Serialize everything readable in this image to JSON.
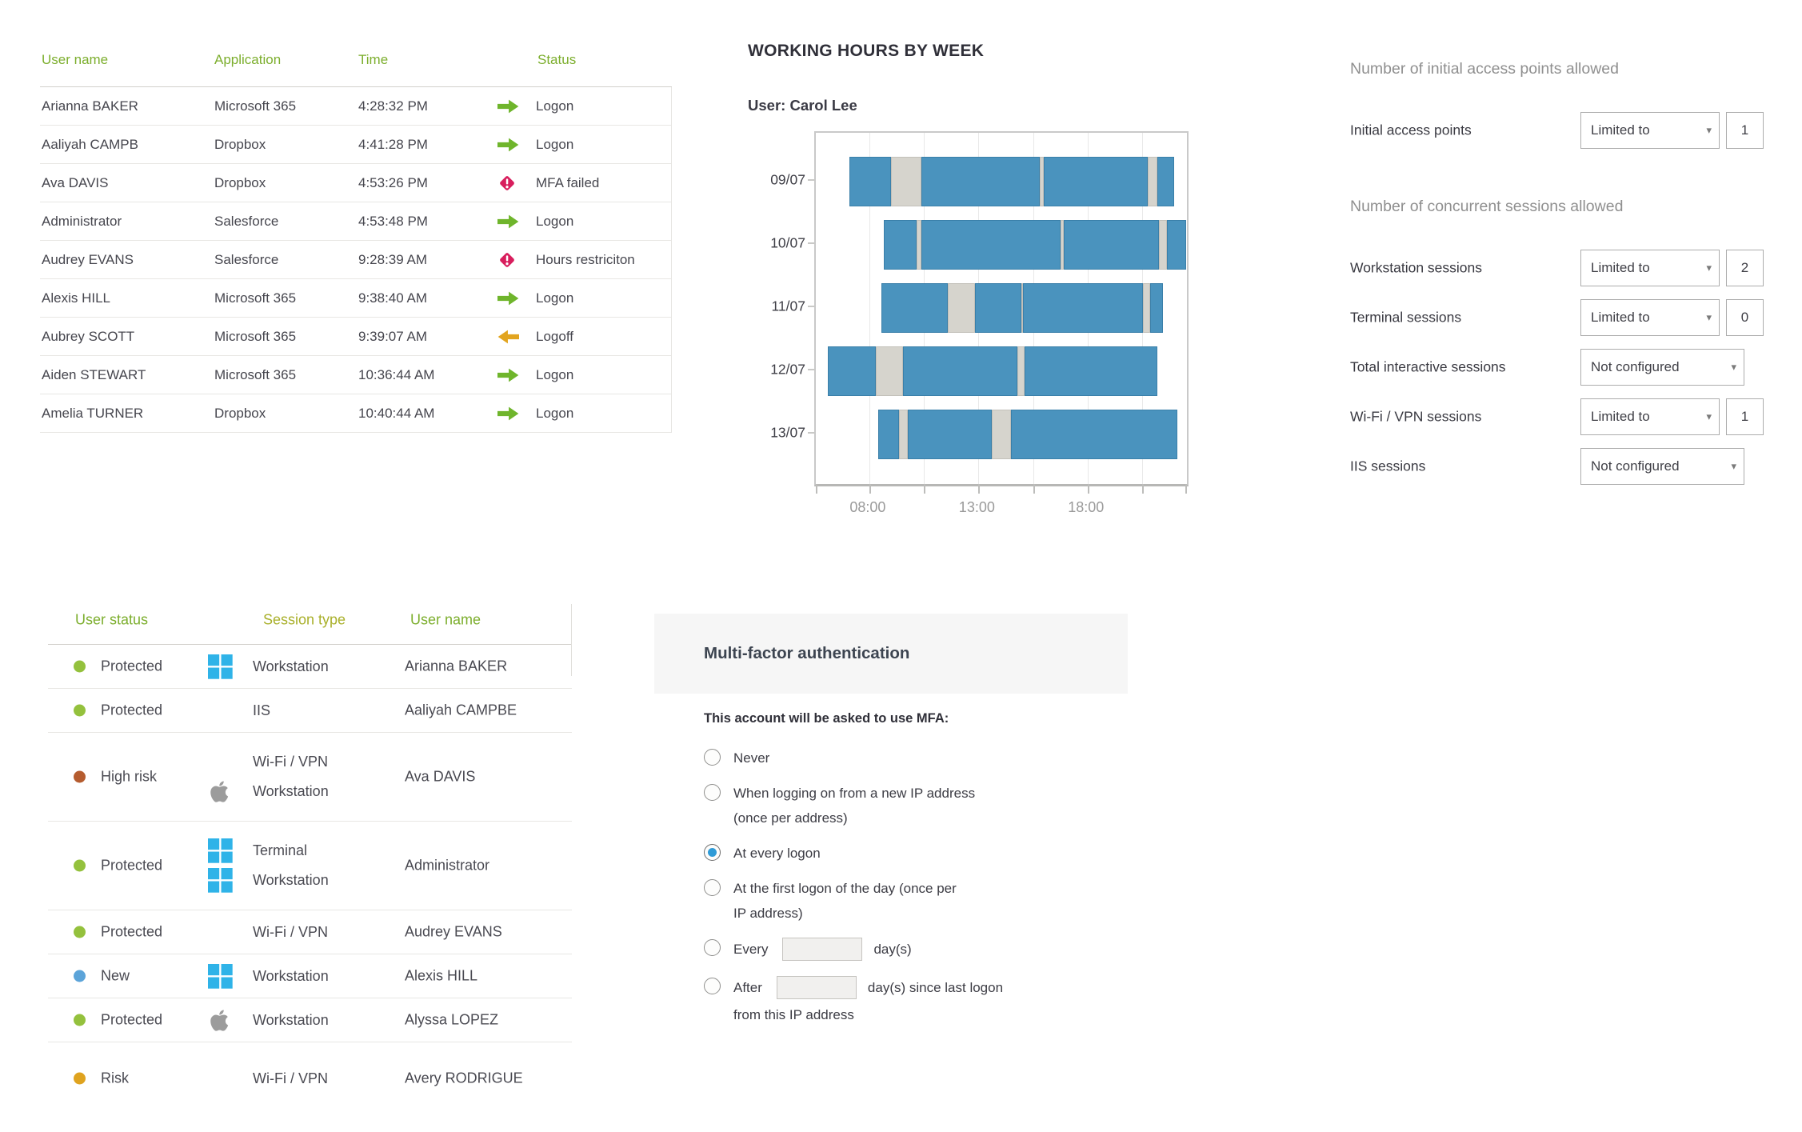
{
  "colors": {
    "header_green": "#7CAE2D",
    "header_sorted": "#A9B02B",
    "text_dark": "#46464E",
    "text_gray": "#8F8F8F",
    "row_line": "#E8E7E4",
    "logon_green": "#6FB52C",
    "logoff_amber": "#E2A41E",
    "alert_red": "#D81E5D",
    "bar_blue": "#4A93BE",
    "bar_blue_border": "#3A7FA9",
    "bar_gray": "#D6D4CD",
    "bar_gray_border": "#C2C0B9",
    "win_blue": "#2FB3E8",
    "apple_gray": "#9C9C9C",
    "dot_protected": "#94C13D",
    "dot_highrisk": "#B55C2F",
    "dot_new": "#5CA4D9",
    "dot_risk": "#DFA31F",
    "radio_blue": "#2F9BD7",
    "box_border": "#ACACAC",
    "plot_border": "#C9C9C9",
    "grid_line": "#E9E9E9",
    "chart_label_gray": "#9A9A9A",
    "mfa_band": "#F6F6F6",
    "input_bg": "#F1F0EE",
    "input_border": "#C6C4C0"
  },
  "logon_table": {
    "headers": [
      "User name",
      "Application",
      "Time",
      "Status"
    ],
    "rows": [
      {
        "user": "Arianna BAKER",
        "app": "Microsoft 365",
        "time": "4:28:32 PM",
        "status": "Logon",
        "kind": "logon"
      },
      {
        "user": "Aaliyah CAMPB",
        "app": "Dropbox",
        "time": "4:41:28 PM",
        "status": "Logon",
        "kind": "logon"
      },
      {
        "user": "Ava DAVIS",
        "app": "Dropbox",
        "time": "4:53:26 PM",
        "status": "MFA failed",
        "kind": "alert"
      },
      {
        "user": "Administrator",
        "app": "Salesforce",
        "time": "4:53:48 PM",
        "status": "Logon",
        "kind": "logon"
      },
      {
        "user": "Audrey EVANS",
        "app": "Salesforce",
        "time": "9:28:39 AM",
        "status": "Hours restriciton",
        "kind": "alert"
      },
      {
        "user": "Alexis HILL",
        "app": "Microsoft 365",
        "time": "9:38:40 AM",
        "status": "Logon",
        "kind": "logon"
      },
      {
        "user": "Aubrey SCOTT",
        "app": "Microsoft 365",
        "time": "9:39:07 AM",
        "status": "Logoff",
        "kind": "logoff"
      },
      {
        "user": "Aiden STEWART",
        "app": "Microsoft 365",
        "time": "10:36:44 AM",
        "status": "Logon",
        "kind": "logon"
      },
      {
        "user": "Amelia TURNER",
        "app": "Dropbox",
        "time": "10:40:44 AM",
        "status": "Logon",
        "kind": "logon"
      }
    ]
  },
  "chart": {
    "title": "WORKING HOURS BY WEEK",
    "user_prefix": "User:",
    "user_name": "Carol Lee",
    "chart_data": {
      "type": "gantt-timeline",
      "x_range_hours": [
        5.55,
        22.55
      ],
      "gridline_hours": [
        8,
        10.5,
        13,
        15.5,
        18,
        20.5
      ],
      "x_ticks": [
        {
          "hour": 8,
          "label": "08:00"
        },
        {
          "hour": 13,
          "label": "13:00"
        },
        {
          "hour": 18,
          "label": "18:00"
        }
      ],
      "days": [
        {
          "date": "09/07",
          "segments": [
            {
              "state": "active",
              "start": 7.1,
              "end": 9.0
            },
            {
              "state": "idle",
              "start": 9.0,
              "end": 10.4
            },
            {
              "state": "active",
              "start": 10.4,
              "end": 15.8
            },
            {
              "state": "idle",
              "start": 15.8,
              "end": 16.0
            },
            {
              "state": "active",
              "start": 16.0,
              "end": 20.75
            },
            {
              "state": "idle",
              "start": 20.75,
              "end": 21.2
            },
            {
              "state": "active",
              "start": 21.2,
              "end": 21.95
            }
          ]
        },
        {
          "date": "10/07",
          "segments": [
            {
              "state": "active",
              "start": 8.65,
              "end": 10.15
            },
            {
              "state": "idle",
              "start": 10.15,
              "end": 10.4
            },
            {
              "state": "active",
              "start": 10.4,
              "end": 16.75
            },
            {
              "state": "idle",
              "start": 16.75,
              "end": 16.9
            },
            {
              "state": "active",
              "start": 16.9,
              "end": 21.25
            },
            {
              "state": "idle",
              "start": 21.25,
              "end": 21.65
            },
            {
              "state": "active",
              "start": 21.65,
              "end": 22.5
            }
          ]
        },
        {
          "date": "11/07",
          "segments": [
            {
              "state": "active",
              "start": 8.55,
              "end": 11.6
            },
            {
              "state": "idle",
              "start": 11.6,
              "end": 12.85
            },
            {
              "state": "active",
              "start": 12.85,
              "end": 14.95
            },
            {
              "state": "idle",
              "start": 14.95,
              "end": 15.05
            },
            {
              "state": "active",
              "start": 15.05,
              "end": 20.55
            },
            {
              "state": "idle",
              "start": 20.55,
              "end": 20.85
            },
            {
              "state": "active",
              "start": 20.85,
              "end": 21.45
            }
          ]
        },
        {
          "date": "12/07",
          "segments": [
            {
              "state": "active",
              "start": 6.1,
              "end": 8.3
            },
            {
              "state": "idle",
              "start": 8.3,
              "end": 9.55
            },
            {
              "state": "active",
              "start": 9.55,
              "end": 14.8
            },
            {
              "state": "idle",
              "start": 14.8,
              "end": 15.1
            },
            {
              "state": "active",
              "start": 15.1,
              "end": 21.2
            }
          ]
        },
        {
          "date": "13/07",
          "segments": [
            {
              "state": "active",
              "start": 8.4,
              "end": 9.35
            },
            {
              "state": "idle",
              "start": 9.35,
              "end": 9.75
            },
            {
              "state": "active",
              "start": 9.75,
              "end": 13.6
            },
            {
              "state": "idle",
              "start": 13.6,
              "end": 14.5
            },
            {
              "state": "active",
              "start": 14.5,
              "end": 22.1
            }
          ]
        }
      ]
    }
  },
  "limits": {
    "section1": {
      "heading": "Number of initial access points allowed",
      "rows": [
        {
          "label": "Initial access points",
          "mode": "Limited to",
          "value": "1"
        }
      ]
    },
    "section2": {
      "heading": "Number of concurrent sessions allowed",
      "rows": [
        {
          "label": "Workstation sessions",
          "mode": "Limited to",
          "value": "2"
        },
        {
          "label": "Terminal sessions",
          "mode": "Limited to",
          "value": "0"
        },
        {
          "label": "Total interactive sessions",
          "mode": "Not configured"
        },
        {
          "label": "Wi-Fi / VPN sessions",
          "mode": "Limited to",
          "value": "1"
        },
        {
          "label": "IIS sessions",
          "mode": "Not configured"
        }
      ]
    }
  },
  "session_table": {
    "headers": [
      "User status",
      "Session type",
      "User name"
    ],
    "rows": [
      {
        "status": "Protected",
        "dot": "protected",
        "sessions": [
          {
            "icon": "windows",
            "label": "Workstation"
          }
        ],
        "user": "Arianna BAKER"
      },
      {
        "status": "Protected",
        "dot": "protected",
        "sessions": [
          {
            "icon": "none",
            "label": "IIS"
          }
        ],
        "user": "Aaliyah CAMPBE"
      },
      {
        "status": "High risk",
        "dot": "highrisk",
        "sessions": [
          {
            "icon": "none",
            "label": "Wi-Fi / VPN"
          },
          {
            "icon": "apple",
            "label": "Workstation"
          }
        ],
        "user": "Ava DAVIS"
      },
      {
        "status": "Protected",
        "dot": "protected",
        "sessions": [
          {
            "icon": "windows",
            "label": "Terminal"
          },
          {
            "icon": "windows",
            "label": "Workstation"
          }
        ],
        "user": "Administrator"
      },
      {
        "status": "Protected",
        "dot": "protected",
        "sessions": [
          {
            "icon": "none",
            "label": "Wi-Fi / VPN"
          }
        ],
        "user": "Audrey EVANS"
      },
      {
        "status": "New",
        "dot": "new",
        "sessions": [
          {
            "icon": "windows",
            "label": "Workstation"
          }
        ],
        "user": "Alexis HILL"
      },
      {
        "status": "Protected",
        "dot": "protected",
        "sessions": [
          {
            "icon": "apple",
            "label": "Workstation"
          }
        ],
        "user": "Alyssa LOPEZ"
      },
      {
        "status": "Risk",
        "dot": "risk",
        "sessions": [
          {
            "icon": "none",
            "label": "Wi-Fi / VPN"
          }
        ],
        "user": "Avery RODRIGUE",
        "spacer": true
      }
    ]
  },
  "mfa": {
    "title": "Multi-factor authentication",
    "subtitle": "This account will be asked to use MFA:",
    "options": [
      {
        "label": "Never",
        "selected": false
      },
      {
        "label": "When logging on from a new IP address",
        "line2": "(once per address)",
        "selected": false
      },
      {
        "label": "At every logon",
        "selected": true
      },
      {
        "label": "At the first logon of the day (once per",
        "line2": "IP address)",
        "selected": false
      },
      {
        "label": "Every",
        "input": "",
        "suffix": "day(s)",
        "selected": false
      },
      {
        "label": "After",
        "input": "",
        "suffix": "day(s) since last logon",
        "line2": "from this IP address",
        "selected": false
      }
    ]
  }
}
